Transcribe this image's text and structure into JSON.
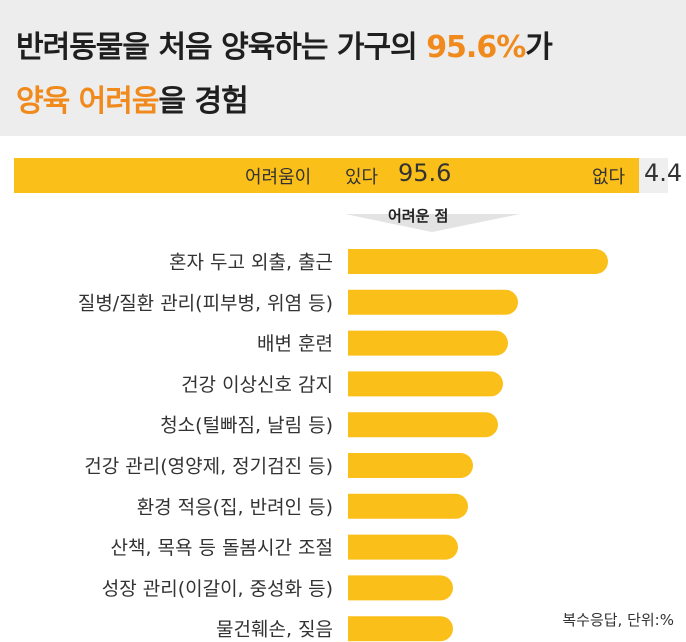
{
  "header": {
    "line1_main": "반려동물을 처음 양육하는 가구의 ",
    "line1_accent": "95.6%",
    "line1_tail": "가",
    "line2_accent": "양육 어려움",
    "line2_tail": "을 경험"
  },
  "split": {
    "yes_label": "어려움이",
    "yes_label2": "있다",
    "yes_value": 95.6,
    "yes_value_text": "95.6",
    "no_label": "없다",
    "no_value": 4.4,
    "no_value_text": "4.4"
  },
  "pointer_label": "어려운 점",
  "footnote": "복수응답, 단위:%",
  "colors": {
    "bar": "#fbbf1a",
    "accent": "#f08a1c",
    "header_bg": "#ededed"
  },
  "chart_data": {
    "type": "bar",
    "orientation": "horizontal",
    "categories": [
      "혼자 두고 외출, 출근",
      "질병/질환 관리(피부병, 위염 등)",
      "배변 훈련",
      "건강 이상신호 감지",
      "청소(털빠짐, 날림 등)",
      "건강 관리(영양제, 정기검진 등)",
      "환경 적응(집, 반려인 등)",
      "산책, 목욕 등 돌봄시간 조절",
      "성장 관리(이갈이, 중성화 등)",
      "물건훼손, 짖음"
    ],
    "values": [
      52,
      34,
      32,
      31,
      30,
      25,
      24,
      22,
      21,
      21
    ],
    "unit": "%",
    "xlim": [
      0,
      60
    ]
  }
}
